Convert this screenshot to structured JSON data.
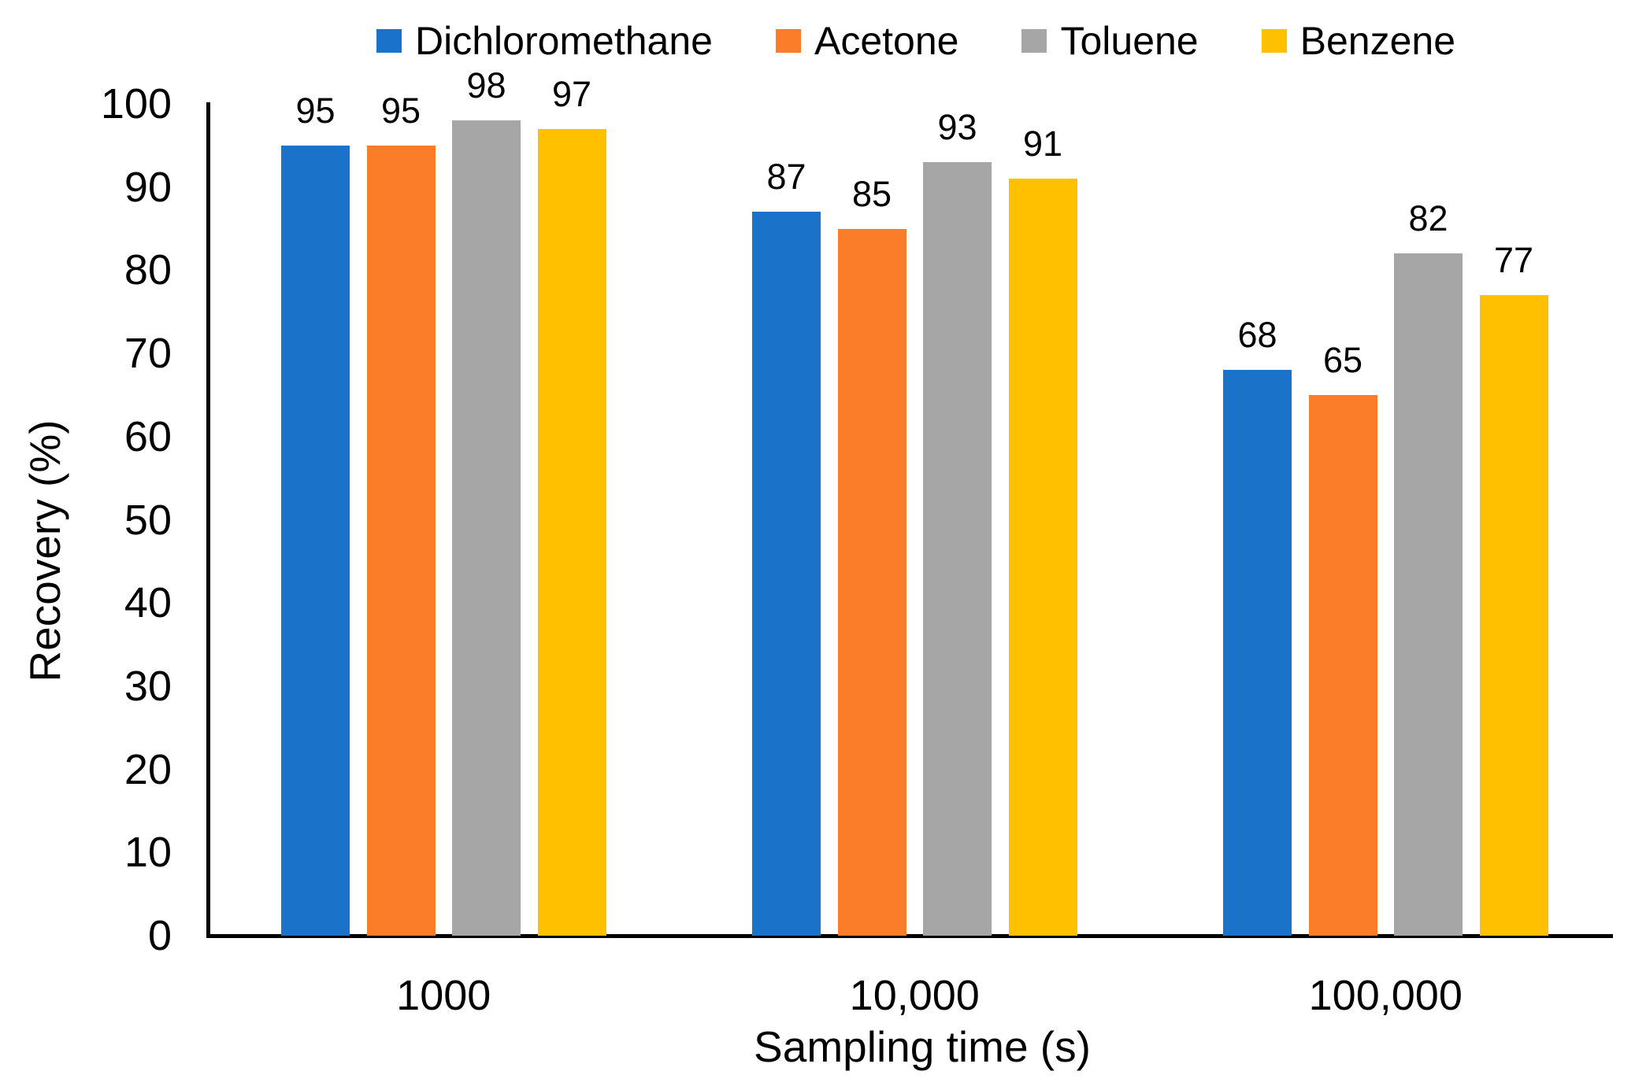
{
  "chart_data": {
    "type": "bar",
    "title": "",
    "xlabel": "Sampling time (s)",
    "ylabel": "Recovery (%)",
    "categories": [
      "1000",
      "10,000",
      "100,000"
    ],
    "series": [
      {
        "name": "Dichloromethane",
        "color": "#1A73C8",
        "values": [
          95,
          87,
          68
        ]
      },
      {
        "name": "Acetone",
        "color": "#FC7D29",
        "values": [
          95,
          85,
          65
        ]
      },
      {
        "name": "Toluene",
        "color": "#A6A6A6",
        "values": [
          98,
          93,
          82
        ]
      },
      {
        "name": "Benzene",
        "color": "#FFC000",
        "values": [
          97,
          91,
          77
        ]
      }
    ],
    "data_labels": [
      [
        "95",
        "87",
        "68"
      ],
      [
        "95",
        "85",
        "65"
      ],
      [
        "98",
        "93",
        "82"
      ],
      [
        "97",
        "91",
        "77"
      ]
    ],
    "ytick_labels": [
      "0",
      "10",
      "20",
      "30",
      "40",
      "50",
      "60",
      "70",
      "80",
      "90",
      "100"
    ],
    "ylim": [
      0,
      100
    ],
    "ytick_step": 10,
    "grid": false,
    "legend_position": "top",
    "axis_color": "#000000",
    "text_color": "#000000",
    "background_color": "#FFFFFF"
  }
}
